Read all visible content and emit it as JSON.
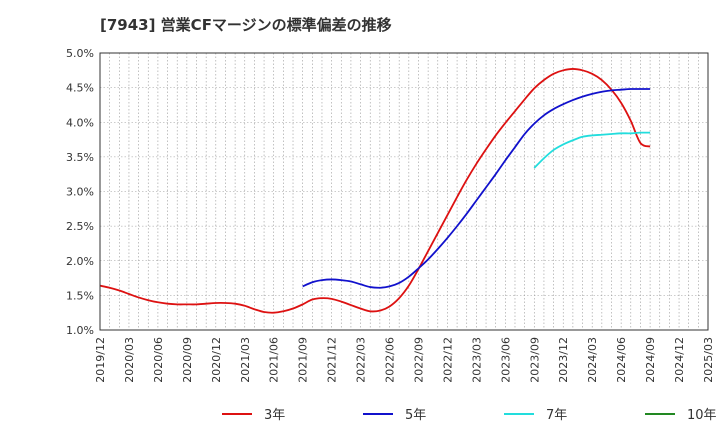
{
  "title": "[7943]  営業CFマージンの標準偏差の推移",
  "chart_data": {
    "type": "line",
    "title": "[7943]  営業CFマージンの標準偏差の推移",
    "xlabel": "",
    "ylabel": "",
    "ylim": [
      1.0,
      5.0
    ],
    "y_ticks": [
      "1.0%",
      "1.5%",
      "2.0%",
      "2.5%",
      "3.0%",
      "3.5%",
      "4.0%",
      "4.5%",
      "5.0%"
    ],
    "x_range": [
      "2019-12",
      "2025-03"
    ],
    "x_ticks": [
      "2019/12",
      "2020/03",
      "2020/06",
      "2020/09",
      "2020/12",
      "2021/03",
      "2021/06",
      "2021/09",
      "2021/12",
      "2022/03",
      "2022/06",
      "2022/09",
      "2022/12",
      "2023/03",
      "2023/06",
      "2023/09",
      "2023/12",
      "2024/03",
      "2024/06",
      "2024/09",
      "2024/12",
      "2025/03"
    ],
    "grid": true,
    "legend_position": "bottom",
    "series": [
      {
        "name": "3年",
        "color": "#dd1111",
        "points": [
          [
            "2019-12",
            1.64
          ],
          [
            "2020-01",
            1.61
          ],
          [
            "2020-02",
            1.57
          ],
          [
            "2020-03",
            1.52
          ],
          [
            "2020-04",
            1.47
          ],
          [
            "2020-05",
            1.43
          ],
          [
            "2020-06",
            1.4
          ],
          [
            "2020-07",
            1.38
          ],
          [
            "2020-08",
            1.37
          ],
          [
            "2020-09",
            1.37
          ],
          [
            "2020-10",
            1.37
          ],
          [
            "2020-11",
            1.38
          ],
          [
            "2020-12",
            1.39
          ],
          [
            "2021-01",
            1.39
          ],
          [
            "2021-02",
            1.38
          ],
          [
            "2021-03",
            1.35
          ],
          [
            "2021-04",
            1.3
          ],
          [
            "2021-05",
            1.26
          ],
          [
            "2021-06",
            1.25
          ],
          [
            "2021-07",
            1.27
          ],
          [
            "2021-08",
            1.31
          ],
          [
            "2021-09",
            1.37
          ],
          [
            "2021-10",
            1.44
          ],
          [
            "2021-11",
            1.46
          ],
          [
            "2021-12",
            1.45
          ],
          [
            "2022-01",
            1.41
          ],
          [
            "2022-02",
            1.36
          ],
          [
            "2022-03",
            1.31
          ],
          [
            "2022-04",
            1.27
          ],
          [
            "2022-05",
            1.28
          ],
          [
            "2022-06",
            1.34
          ],
          [
            "2022-07",
            1.46
          ],
          [
            "2022-08",
            1.64
          ],
          [
            "2022-09",
            1.88
          ],
          [
            "2022-10",
            2.14
          ],
          [
            "2022-11",
            2.4
          ],
          [
            "2022-12",
            2.66
          ],
          [
            "2023-01",
            2.92
          ],
          [
            "2023-02",
            3.17
          ],
          [
            "2023-03",
            3.4
          ],
          [
            "2023-04",
            3.61
          ],
          [
            "2023-05",
            3.81
          ],
          [
            "2023-06",
            3.99
          ],
          [
            "2023-07",
            4.16
          ],
          [
            "2023-08",
            4.33
          ],
          [
            "2023-09",
            4.49
          ],
          [
            "2023-10",
            4.61
          ],
          [
            "2023-11",
            4.7
          ],
          [
            "2023-12",
            4.75
          ],
          [
            "2024-01",
            4.77
          ],
          [
            "2024-02",
            4.75
          ],
          [
            "2024-03",
            4.7
          ],
          [
            "2024-04",
            4.61
          ],
          [
            "2024-05",
            4.47
          ],
          [
            "2024-06",
            4.28
          ],
          [
            "2024-07",
            4.02
          ],
          [
            "2024-08",
            3.7
          ],
          [
            "2024-09",
            3.65
          ]
        ]
      },
      {
        "name": "5年",
        "color": "#1111cc",
        "points": [
          [
            "2021-09",
            1.63
          ],
          [
            "2021-10",
            1.69
          ],
          [
            "2021-11",
            1.72
          ],
          [
            "2021-12",
            1.73
          ],
          [
            "2022-01",
            1.72
          ],
          [
            "2022-02",
            1.7
          ],
          [
            "2022-03",
            1.66
          ],
          [
            "2022-04",
            1.62
          ],
          [
            "2022-05",
            1.61
          ],
          [
            "2022-06",
            1.63
          ],
          [
            "2022-07",
            1.68
          ],
          [
            "2022-08",
            1.77
          ],
          [
            "2022-09",
            1.89
          ],
          [
            "2022-10",
            2.02
          ],
          [
            "2022-11",
            2.17
          ],
          [
            "2022-12",
            2.33
          ],
          [
            "2023-01",
            2.5
          ],
          [
            "2023-02",
            2.68
          ],
          [
            "2023-03",
            2.87
          ],
          [
            "2023-04",
            3.06
          ],
          [
            "2023-05",
            3.25
          ],
          [
            "2023-06",
            3.45
          ],
          [
            "2023-07",
            3.64
          ],
          [
            "2023-08",
            3.83
          ],
          [
            "2023-09",
            3.98
          ],
          [
            "2023-10",
            4.1
          ],
          [
            "2023-11",
            4.19
          ],
          [
            "2023-12",
            4.26
          ],
          [
            "2024-01",
            4.32
          ],
          [
            "2024-02",
            4.37
          ],
          [
            "2024-03",
            4.41
          ],
          [
            "2024-04",
            4.44
          ],
          [
            "2024-05",
            4.46
          ],
          [
            "2024-06",
            4.47
          ],
          [
            "2024-07",
            4.48
          ],
          [
            "2024-08",
            4.48
          ],
          [
            "2024-09",
            4.48
          ]
        ]
      },
      {
        "name": "7年",
        "color": "#22dddd",
        "points": [
          [
            "2023-09",
            3.34
          ],
          [
            "2023-10",
            3.48
          ],
          [
            "2023-11",
            3.6
          ],
          [
            "2023-12",
            3.68
          ],
          [
            "2024-01",
            3.74
          ],
          [
            "2024-02",
            3.79
          ],
          [
            "2024-03",
            3.81
          ],
          [
            "2024-04",
            3.82
          ],
          [
            "2024-05",
            3.83
          ],
          [
            "2024-06",
            3.84
          ],
          [
            "2024-07",
            3.84
          ],
          [
            "2024-08",
            3.85
          ],
          [
            "2024-09",
            3.85
          ]
        ]
      },
      {
        "name": "10年",
        "color": "#228822",
        "points": []
      }
    ]
  }
}
